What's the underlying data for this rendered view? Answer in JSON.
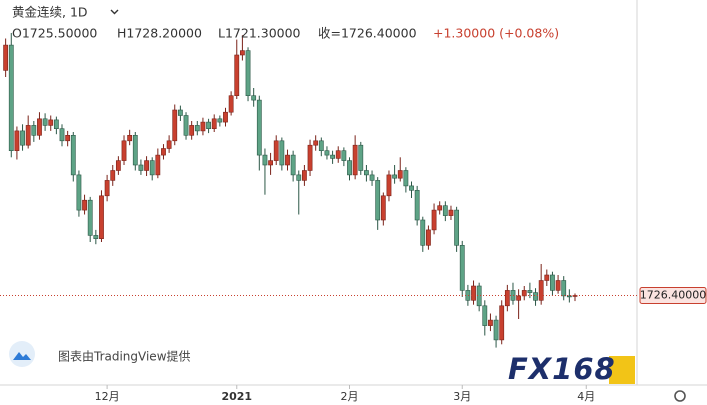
{
  "chart_data": {
    "type": "candlestick",
    "title": "黄金连续, 1D",
    "header": {
      "open": "O1725.50000",
      "high": "H1728.20000",
      "low": "L1721.30000",
      "close": "收=1726.40000",
      "change": "+1.30000 (+0.08%)"
    },
    "series": [
      {
        "up_color": "#c8402f",
        "down_color": "#5ea386",
        "open": [
          1931,
          1954,
          1858,
          1876,
          1863,
          1881,
          1872,
          1887,
          1881,
          1886,
          1878,
          1867,
          1872,
          1836,
          1804,
          1813,
          1781,
          1778,
          1817,
          1831,
          1840,
          1849,
          1867,
          1872,
          1845,
          1840,
          1849,
          1836,
          1854,
          1860,
          1867,
          1895,
          1890,
          1872,
          1881,
          1876,
          1884,
          1878,
          1887,
          1884,
          1893,
          1908,
          1945,
          1949,
          1908,
          1904,
          1854,
          1845,
          1849,
          1867,
          1845,
          1854,
          1836,
          1831,
          1840,
          1863,
          1867,
          1858,
          1854,
          1851,
          1858,
          1849,
          1836,
          1863,
          1840,
          1836,
          1831,
          1795,
          1817,
          1836,
          1833,
          1840,
          1826,
          1822,
          1795,
          1772,
          1786,
          1804,
          1808,
          1799,
          1804,
          1772,
          1731,
          1722,
          1735,
          1717,
          1699,
          1704,
          1686,
          1717,
          1731,
          1722,
          1726,
          1731,
          1729,
          1722,
          1740,
          1745,
          1731,
          1740,
          1726,
          1725.5
        ],
        "high": [
          1960,
          1965,
          1880,
          1882,
          1890,
          1885,
          1893,
          1892,
          1890,
          1889,
          1882,
          1876,
          1875,
          1840,
          1818,
          1816,
          1786,
          1822,
          1836,
          1845,
          1853,
          1872,
          1877,
          1875,
          1850,
          1853,
          1852,
          1860,
          1864,
          1872,
          1900,
          1899,
          1893,
          1885,
          1885,
          1888,
          1887,
          1891,
          1890,
          1897,
          1912,
          1959,
          1963,
          1952,
          1915,
          1908,
          1860,
          1856,
          1872,
          1870,
          1859,
          1858,
          1840,
          1845,
          1868,
          1872,
          1870,
          1862,
          1858,
          1862,
          1861,
          1852,
          1872,
          1866,
          1845,
          1840,
          1834,
          1820,
          1840,
          1845,
          1852,
          1843,
          1830,
          1826,
          1798,
          1790,
          1810,
          1812,
          1812,
          1808,
          1807,
          1776,
          1736,
          1740,
          1738,
          1722,
          1710,
          1708,
          1722,
          1736,
          1738,
          1732,
          1735,
          1738,
          1733,
          1755,
          1750,
          1748,
          1745,
          1744,
          1732,
          1728.2
        ],
        "low": [
          1925,
          1852,
          1850,
          1858,
          1860,
          1866,
          1868,
          1876,
          1876,
          1873,
          1862,
          1862,
          1830,
          1798,
          1800,
          1775,
          1773,
          1775,
          1812,
          1826,
          1836,
          1845,
          1863,
          1840,
          1836,
          1835,
          1831,
          1833,
          1850,
          1856,
          1863,
          1885,
          1868,
          1868,
          1872,
          1872,
          1874,
          1875,
          1880,
          1880,
          1890,
          1905,
          1940,
          1903,
          1898,
          1840,
          1818,
          1836,
          1845,
          1840,
          1840,
          1830,
          1800,
          1826,
          1835,
          1858,
          1853,
          1850,
          1846,
          1847,
          1844,
          1831,
          1832,
          1836,
          1830,
          1826,
          1786,
          1790,
          1812,
          1828,
          1830,
          1820,
          1815,
          1790,
          1766,
          1768,
          1782,
          1800,
          1794,
          1795,
          1766,
          1725,
          1717,
          1718,
          1712,
          1690,
          1694,
          1679,
          1682,
          1712,
          1718,
          1705,
          1722,
          1724,
          1717,
          1718,
          1735,
          1726,
          1728,
          1722,
          1720,
          1721.3
        ],
        "close": [
          1954,
          1858,
          1876,
          1863,
          1881,
          1872,
          1887,
          1881,
          1886,
          1878,
          1867,
          1872,
          1836,
          1804,
          1813,
          1781,
          1778,
          1817,
          1831,
          1840,
          1849,
          1867,
          1872,
          1845,
          1840,
          1849,
          1836,
          1854,
          1860,
          1867,
          1895,
          1890,
          1872,
          1881,
          1876,
          1884,
          1878,
          1887,
          1884,
          1893,
          1908,
          1945,
          1949,
          1908,
          1904,
          1854,
          1845,
          1849,
          1867,
          1845,
          1854,
          1836,
          1831,
          1840,
          1863,
          1867,
          1858,
          1854,
          1851,
          1858,
          1849,
          1836,
          1863,
          1840,
          1836,
          1831,
          1795,
          1817,
          1836,
          1833,
          1840,
          1826,
          1822,
          1795,
          1772,
          1786,
          1804,
          1808,
          1799,
          1804,
          1772,
          1731,
          1722,
          1735,
          1717,
          1699,
          1704,
          1686,
          1717,
          1731,
          1722,
          1726,
          1731,
          1729,
          1722,
          1740,
          1745,
          1731,
          1740,
          1726,
          1725.1,
          1726.4
        ]
      }
    ],
    "ylim": [
      1645,
      1995
    ],
    "xlim": [
      -1,
      112
    ],
    "xticks": [
      {
        "value": 18,
        "label": "12月"
      },
      {
        "value": 41,
        "label": "2021"
      },
      {
        "value": 61,
        "label": "2月"
      },
      {
        "value": 81,
        "label": "3月"
      },
      {
        "value": 103,
        "label": "4月"
      }
    ],
    "last_price": {
      "value": 1726.4,
      "label": "1726.40000",
      "color": "#c8402f"
    },
    "credit": "图表由TradingView提供",
    "watermark": "FX168"
  }
}
